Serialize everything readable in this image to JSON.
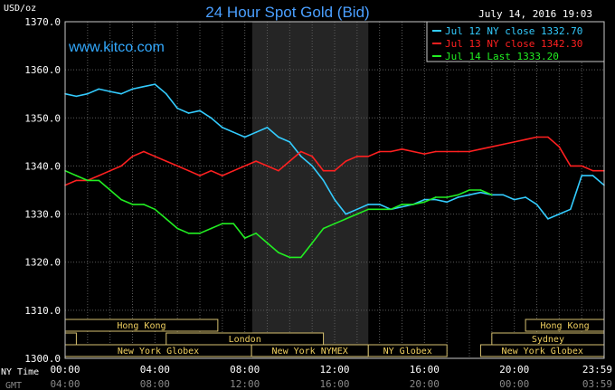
{
  "chart_data": {
    "type": "line",
    "title": "24 Hour Spot Gold (Bid)",
    "ylabel": "USD/oz",
    "timestamp": "July 14, 2016 19:03",
    "watermark": "www.kitco.com",
    "ylim": [
      1300,
      1370
    ],
    "yticks": [
      "1370.0",
      "1360.0",
      "1350.0",
      "1340.0",
      "1330.0",
      "1320.0",
      "1310.0",
      "1300.0"
    ],
    "ytick_values": [
      1370,
      1360,
      1350,
      1340,
      1330,
      1320,
      1310,
      1300
    ],
    "xlim": [
      0,
      24
    ],
    "xticks_ny": [
      "00:00",
      "04:00",
      "08:00",
      "12:00",
      "16:00",
      "20:00",
      "23:59"
    ],
    "xticks_gmt": [
      "04:00",
      "08:00",
      "12:00",
      "16:00",
      "20:00",
      "00:00",
      "03:59"
    ],
    "xtick_hours": [
      0,
      4,
      8,
      12,
      16,
      20,
      24
    ],
    "xaxis_label_ny": "NY Time",
    "xaxis_label_gmt": "GMT",
    "nymex_hours": [
      8.33,
      13.5
    ],
    "legend_position": "top-right",
    "series": [
      {
        "name": "Jul 12 NY close 1332.70",
        "color": "#33ccff",
        "x": [
          0,
          0.5,
          1,
          1.5,
          2,
          2.5,
          3,
          3.5,
          4,
          4.5,
          5,
          5.5,
          6,
          6.5,
          7,
          7.5,
          8,
          8.5,
          9,
          9.5,
          10,
          10.5,
          11,
          11.5,
          12,
          12.5,
          13,
          13.5,
          14,
          14.5,
          15,
          15.5,
          16,
          16.5,
          17,
          17.5,
          18,
          18.5,
          19,
          19.5,
          20,
          20.5,
          21,
          21.5,
          22,
          22.5,
          23,
          23.5,
          24
        ],
        "values": [
          1355,
          1354.5,
          1355,
          1356,
          1355.5,
          1355,
          1356,
          1356.5,
          1357,
          1355,
          1352,
          1351,
          1351.5,
          1350,
          1348,
          1347,
          1346,
          1347,
          1348,
          1346,
          1345,
          1342,
          1340,
          1337,
          1333,
          1330,
          1331,
          1332,
          1332,
          1331,
          1331.5,
          1332,
          1333,
          1333,
          1332.5,
          1333.5,
          1334,
          1334.5,
          1334,
          1334,
          1333,
          1333.5,
          1332,
          1329,
          1330,
          1331,
          1338,
          1338,
          1336
        ]
      },
      {
        "name": "Jul 13 NY close 1342.30",
        "color": "#ff2020",
        "x": [
          0,
          0.5,
          1,
          1.5,
          2,
          2.5,
          3,
          3.5,
          4,
          4.5,
          5,
          5.5,
          6,
          6.5,
          7,
          7.5,
          8,
          8.5,
          9,
          9.5,
          10,
          10.5,
          11,
          11.5,
          12,
          12.5,
          13,
          13.5,
          14,
          14.5,
          15,
          15.5,
          16,
          16.5,
          17,
          17.5,
          18,
          18.5,
          19,
          19.5,
          20,
          20.5,
          21,
          21.5,
          22,
          22.5,
          23,
          23.5,
          24
        ],
        "values": [
          1336,
          1337,
          1337,
          1338,
          1339,
          1340,
          1342,
          1343,
          1342,
          1341,
          1340,
          1339,
          1338,
          1339,
          1338,
          1339,
          1340,
          1341,
          1340,
          1339,
          1341,
          1343,
          1342,
          1339,
          1339,
          1341,
          1342,
          1342,
          1343,
          1343,
          1343.5,
          1343,
          1342.5,
          1343,
          1343,
          1343,
          1343,
          1343.5,
          1344,
          1344.5,
          1345,
          1345.5,
          1346,
          1346,
          1344,
          1340,
          1340,
          1339,
          1339
        ]
      },
      {
        "name": "Jul 14 Last 1333.20",
        "color": "#22ee22",
        "x": [
          0,
          0.5,
          1,
          1.5,
          2,
          2.5,
          3,
          3.5,
          4,
          4.5,
          5,
          5.5,
          6,
          6.5,
          7,
          7.5,
          8,
          8.5,
          9,
          9.5,
          10,
          10.5,
          11,
          11.5,
          12,
          12.5,
          13,
          13.5,
          14,
          14.5,
          15,
          15.5,
          16,
          16.5,
          17,
          17.5,
          18,
          18.5,
          19
        ],
        "values": [
          1339,
          1338,
          1337,
          1337,
          1335,
          1333,
          1332,
          1332,
          1331,
          1329,
          1327,
          1326,
          1326,
          1327,
          1328,
          1328,
          1325,
          1326,
          1324,
          1322,
          1321,
          1321,
          1324,
          1327,
          1328,
          1329,
          1330,
          1331,
          1331,
          1331,
          1332,
          1332,
          1332.5,
          1333.5,
          1333.5,
          1334,
          1335,
          1335,
          1334
        ]
      }
    ],
    "sessions": [
      {
        "label": "Hong Kong",
        "row": 0,
        "start": 0,
        "end": 6.8
      },
      {
        "label": "London",
        "row": 1,
        "start": 4.5,
        "end": 11.5
      },
      {
        "label": "Sydney",
        "row": 1,
        "start": 19,
        "end": 24
      },
      {
        "label": "Hong Kong",
        "row": 0,
        "start": 20.5,
        "end": 24
      },
      {
        "label": "",
        "row": 1,
        "start": 0,
        "end": 0.5
      },
      {
        "label": "New York Globex",
        "row": 2,
        "start": 0,
        "end": 8.3
      },
      {
        "label": "New York NYMEX",
        "row": 2,
        "start": 8.3,
        "end": 13.5
      },
      {
        "label": "NY Globex",
        "row": 2,
        "start": 13.5,
        "end": 17
      },
      {
        "label": "New York Globex",
        "row": 2,
        "start": 18.5,
        "end": 24
      }
    ]
  }
}
